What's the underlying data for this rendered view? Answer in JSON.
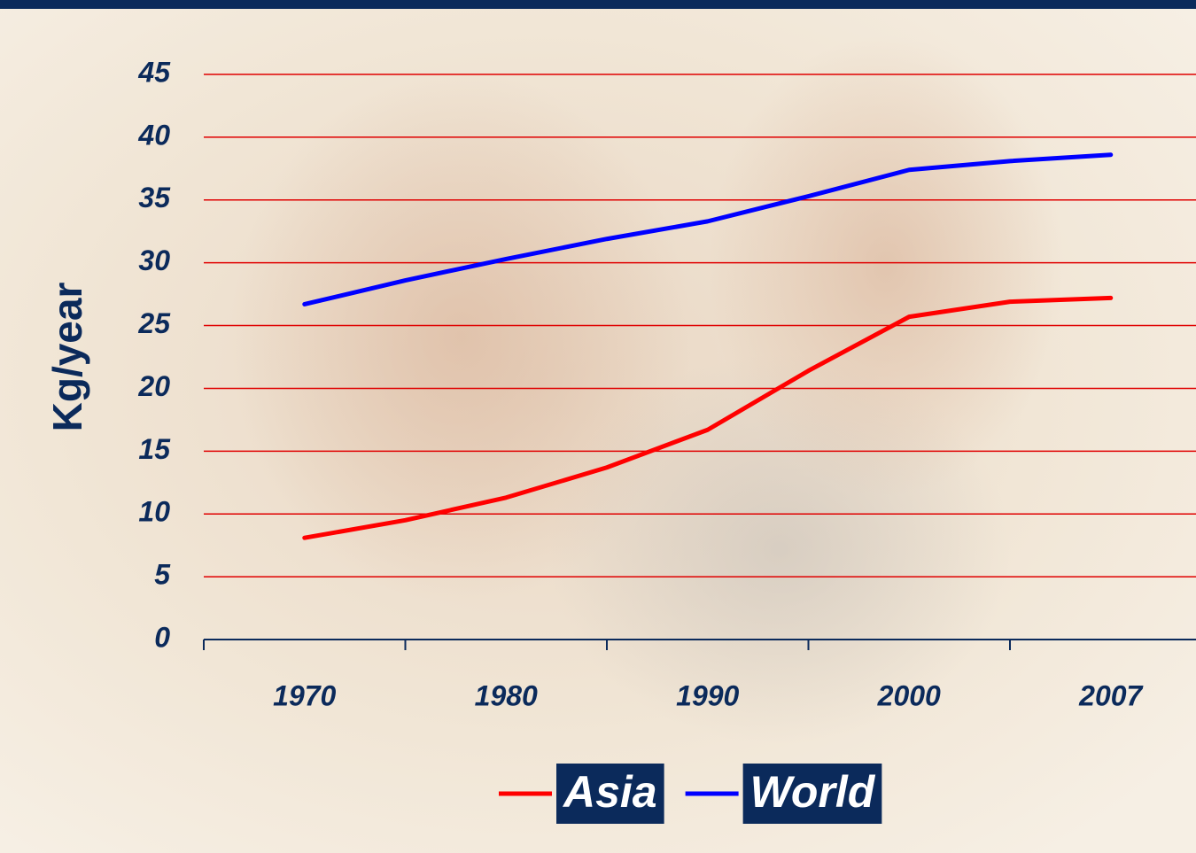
{
  "chart_data": {
    "type": "line",
    "y_label": "Kg/year",
    "categories": [
      "1970",
      null,
      "1980",
      null,
      "1990",
      null,
      "2000",
      null,
      "2007"
    ],
    "series": [
      {
        "name": "Asia",
        "color": "#ff0000",
        "values": [
          8.1,
          9.5,
          11.3,
          13.7,
          16.7,
          21.4,
          25.7,
          26.9,
          27.2
        ]
      },
      {
        "name": "World",
        "color": "#0000ff",
        "values": [
          26.7,
          28.6,
          30.3,
          31.9,
          33.3,
          35.3,
          37.4,
          38.1,
          38.6
        ]
      }
    ],
    "ylim": [
      0,
      45
    ],
    "yticks": [
      0,
      5,
      10,
      15,
      20,
      25,
      30,
      35,
      40,
      45
    ],
    "grid": true,
    "grid_color": "#e00000",
    "legend": "bottom"
  }
}
